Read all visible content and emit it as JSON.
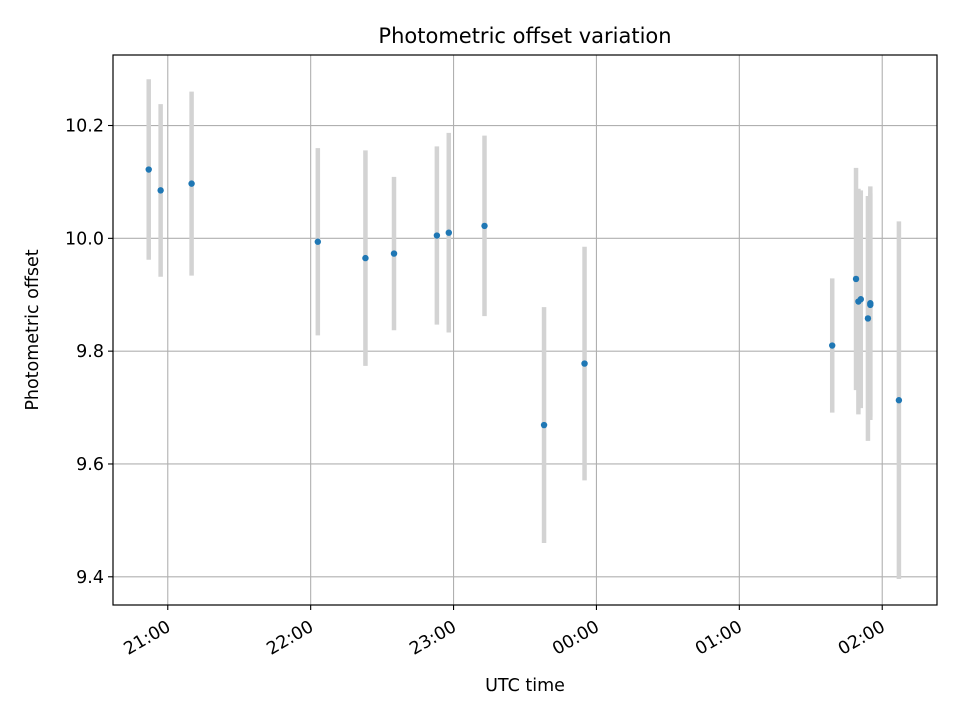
{
  "chart_data": {
    "type": "scatter",
    "title": "Photometric offset variation",
    "xlabel": "UTC time",
    "ylabel": "Photometric offset",
    "x_axis": {
      "kind": "time",
      "range": [
        "20:37",
        "02:23"
      ],
      "ticks": [
        "21:00",
        "22:00",
        "23:00",
        "00:00",
        "01:00",
        "02:00"
      ],
      "tick_label_rotation": "30 degrees"
    },
    "y_axis": {
      "range": [
        9.35,
        10.325
      ],
      "ticks": [
        "9.4",
        "9.6",
        "9.8",
        "10.0",
        "10.2"
      ]
    },
    "grid": true,
    "legend": "none",
    "colors": {
      "points": "#1f77b4",
      "error_bars": "#d3d3d3",
      "grid": "#b0b0b0"
    },
    "points": [
      {
        "t": "20:52",
        "y": 10.122,
        "err": 0.16
      },
      {
        "t": "20:57",
        "y": 10.085,
        "err": 0.153
      },
      {
        "t": "21:10",
        "y": 10.097,
        "err": 0.163
      },
      {
        "t": "22:03",
        "y": 9.994,
        "err": 0.166
      },
      {
        "t": "22:23",
        "y": 9.965,
        "err": 0.191
      },
      {
        "t": "22:35",
        "y": 9.973,
        "err": 0.136
      },
      {
        "t": "22:53",
        "y": 10.005,
        "err": 0.158
      },
      {
        "t": "22:58",
        "y": 10.01,
        "err": 0.177
      },
      {
        "t": "23:13",
        "y": 10.022,
        "err": 0.16
      },
      {
        "t": "23:38",
        "y": 9.669,
        "err": 0.209
      },
      {
        "t": "23:55",
        "y": 9.778,
        "err": 0.207
      },
      {
        "t": "01:39",
        "y": 9.81,
        "err": 0.119
      },
      {
        "t": "01:49",
        "y": 9.928,
        "err": 0.197
      },
      {
        "t": "01:50",
        "y": 9.888,
        "err": 0.2
      },
      {
        "t": "01:51",
        "y": 9.892,
        "err": 0.193
      },
      {
        "t": "01:54",
        "y": 9.858,
        "err": 0.217
      },
      {
        "t": "01:55",
        "y": 9.885,
        "err": 0.207
      },
      {
        "t": "01:55",
        "y": 9.882,
        "err": 0.198
      },
      {
        "t": "02:07",
        "y": 9.713,
        "err": 0.317
      }
    ]
  }
}
